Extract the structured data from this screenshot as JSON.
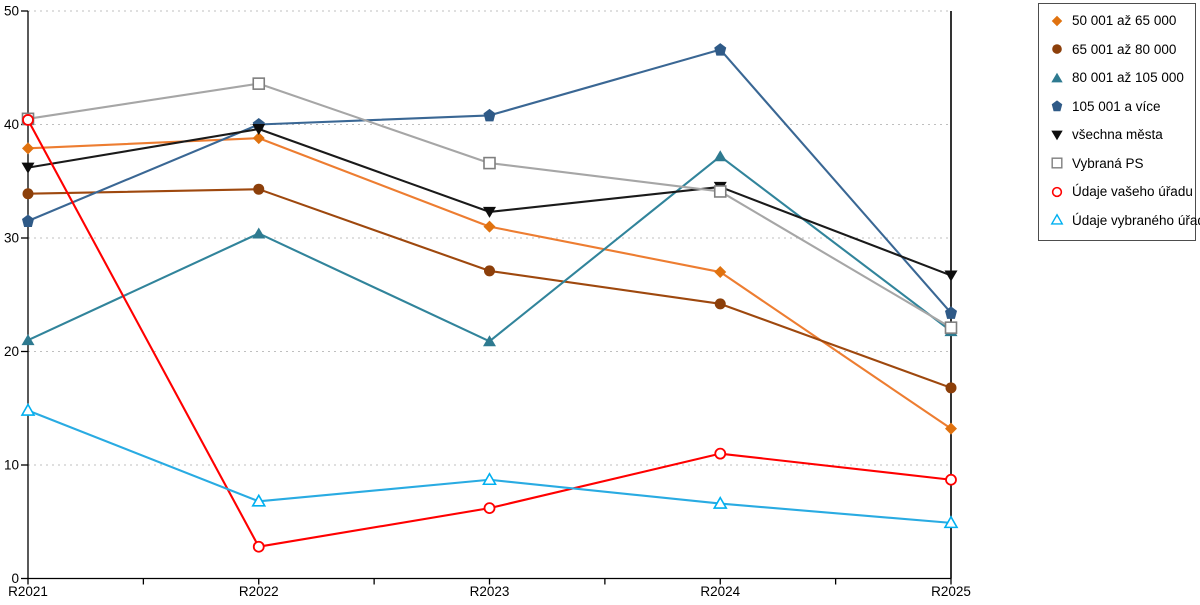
{
  "chart_data": {
    "type": "line",
    "title": "",
    "xlabel": "",
    "ylabel": "",
    "categories": [
      "R2021",
      "R2022",
      "R2023",
      "R2024",
      "R2025"
    ],
    "ylim": [
      0,
      50
    ],
    "y_ticks": [
      0,
      10,
      20,
      30,
      40,
      50
    ],
    "grid": "horizontal-dotted",
    "legend_position": "top-right",
    "axis_color": "#000000",
    "gridline_color": "#bfbfbf",
    "series": [
      {
        "name": "50 001 až 65 000",
        "marker": "diamond",
        "color": "#E0720F",
        "line_color": "#ED7D31",
        "values": [
          37.9,
          38.8,
          31.0,
          27.0,
          13.2
        ]
      },
      {
        "name": "65 001 až 80 000",
        "marker": "circle",
        "color": "#8C3F0A",
        "line_color": "#9E480E",
        "values": [
          33.9,
          34.3,
          27.1,
          24.2,
          16.8
        ]
      },
      {
        "name": "80 001 až 105 000",
        "marker": "triangle-up",
        "color": "#2E7A90",
        "line_color": "#31849B",
        "values": [
          21.0,
          30.4,
          20.9,
          37.2,
          21.8
        ]
      },
      {
        "name": "105 001 a více",
        "marker": "pentagon",
        "color": "#2F5A87",
        "line_color": "#3A6794",
        "values": [
          31.5,
          40.0,
          40.8,
          46.6,
          23.4
        ]
      },
      {
        "name": "všechna města",
        "marker": "triangle-down",
        "color": "#0d0d0d",
        "line_color": "#1a1a1a",
        "values": [
          36.2,
          39.6,
          32.3,
          34.5,
          26.7
        ]
      },
      {
        "name": "Vybraná PS",
        "marker": "square-open",
        "color": "#7F7F7F",
        "line_color": "#A6A6A6",
        "values": [
          40.5,
          43.6,
          36.6,
          34.1,
          22.1
        ]
      },
      {
        "name": "Údaje vašeho úřadu",
        "marker": "circle-open",
        "color": "#FF0000",
        "line_color": "#FF0000",
        "values": [
          40.4,
          2.8,
          6.2,
          11.0,
          8.7
        ]
      },
      {
        "name": "Údaje vybraného úřadu",
        "marker": "triangle-open",
        "color": "#00B0F0",
        "line_color": "#29ABE2",
        "values": [
          14.8,
          6.8,
          8.7,
          6.6,
          4.9
        ]
      }
    ]
  }
}
